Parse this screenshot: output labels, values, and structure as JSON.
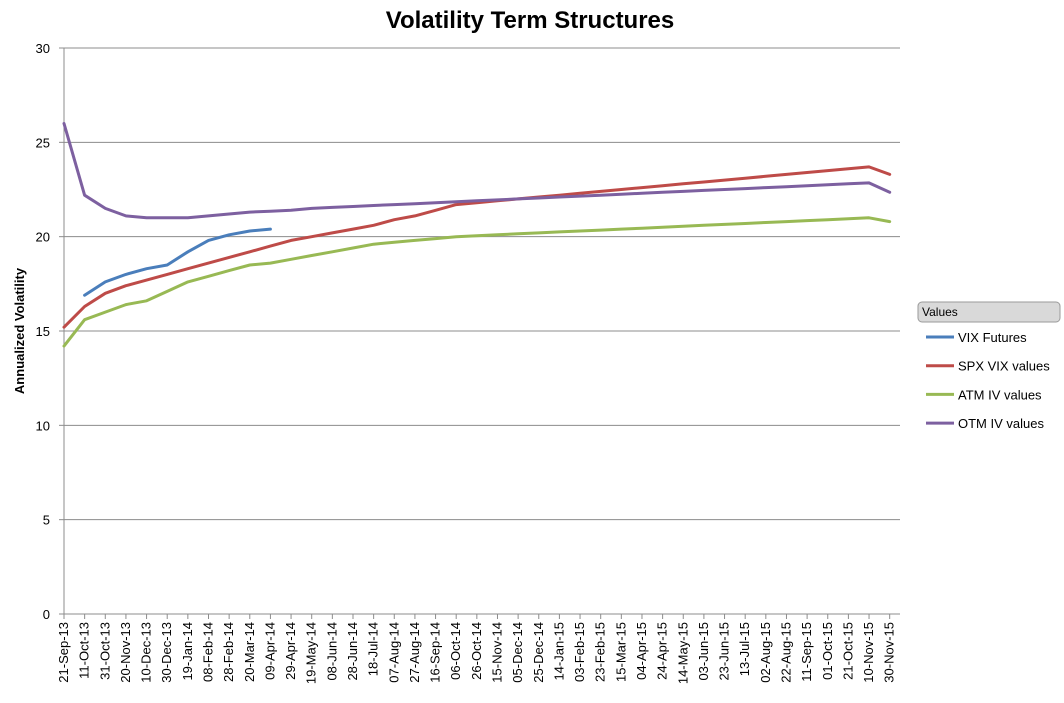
{
  "chart_data": {
    "type": "line",
    "title": "Volatility Term Structures",
    "xlabel": "",
    "ylabel": "Annualized Volatility",
    "ylim": [
      0,
      30
    ],
    "yticks": [
      "0",
      "5",
      "10",
      "15",
      "20",
      "25",
      "30"
    ],
    "grid": true,
    "legend_title": "Values",
    "legend_position": "right",
    "categories": [
      "21-Sep-13",
      "11-Oct-13",
      "31-Oct-13",
      "20-Nov-13",
      "10-Dec-13",
      "30-Dec-13",
      "19-Jan-14",
      "08-Feb-14",
      "28-Feb-14",
      "20-Mar-14",
      "09-Apr-14",
      "29-Apr-14",
      "19-May-14",
      "08-Jun-14",
      "28-Jun-14",
      "18-Jul-14",
      "07-Aug-14",
      "27-Aug-14",
      "16-Sep-14",
      "06-Oct-14",
      "26-Oct-14",
      "15-Nov-14",
      "05-Dec-14",
      "25-Dec-14",
      "14-Jan-15",
      "03-Feb-15",
      "23-Feb-15",
      "15-Mar-15",
      "04-Apr-15",
      "24-Apr-15",
      "14-May-15",
      "03-Jun-15",
      "23-Jun-15",
      "13-Jul-15",
      "02-Aug-15",
      "22-Aug-15",
      "11-Sep-15",
      "01-Oct-15",
      "21-Oct-15",
      "10-Nov-15",
      "30-Nov-15"
    ],
    "series": [
      {
        "name": "VIX Futures",
        "color": "#4a7ebb",
        "values": [
          null,
          16.9,
          17.6,
          18.0,
          18.3,
          18.5,
          19.2,
          19.8,
          20.1,
          20.3,
          20.4,
          null,
          null,
          null,
          null,
          null,
          null,
          null,
          null,
          null,
          null,
          null,
          null,
          null,
          null,
          null,
          null,
          null,
          null,
          null,
          null,
          null,
          null,
          null,
          null,
          null,
          null,
          null,
          null,
          null,
          null
        ]
      },
      {
        "name": "SPX VIX values",
        "color": "#be4b48",
        "values": [
          15.2,
          16.3,
          17.0,
          17.4,
          17.7,
          18.0,
          18.3,
          18.6,
          18.9,
          19.2,
          19.5,
          19.8,
          20.0,
          20.2,
          20.4,
          20.6,
          20.9,
          21.1,
          21.4,
          21.7,
          21.8,
          21.9,
          22.0,
          22.1,
          22.2,
          22.3,
          22.4,
          22.5,
          22.6,
          22.7,
          22.8,
          22.9,
          23.0,
          23.1,
          23.2,
          23.3,
          23.4,
          23.5,
          23.6,
          23.7,
          23.3
        ]
      },
      {
        "name": "ATM IV values",
        "color": "#98b954",
        "values": [
          14.2,
          15.6,
          16.0,
          16.4,
          16.6,
          17.1,
          17.6,
          17.9,
          18.2,
          18.5,
          18.6,
          18.8,
          19.0,
          19.2,
          19.4,
          19.6,
          19.7,
          19.8,
          19.9,
          20.0,
          20.05,
          20.1,
          20.15,
          20.2,
          20.25,
          20.3,
          20.35,
          20.4,
          20.45,
          20.5,
          20.55,
          20.6,
          20.65,
          20.7,
          20.75,
          20.8,
          20.85,
          20.9,
          20.95,
          21.0,
          20.8
        ]
      },
      {
        "name": "OTM IV values",
        "color": "#7d60a0",
        "values": [
          26.0,
          22.2,
          21.5,
          21.1,
          21.0,
          21.0,
          21.0,
          21.1,
          21.2,
          21.3,
          21.35,
          21.4,
          21.5,
          21.55,
          21.6,
          21.65,
          21.7,
          21.75,
          21.8,
          21.85,
          21.9,
          21.95,
          22.0,
          22.05,
          22.1,
          22.15,
          22.2,
          22.25,
          22.3,
          22.35,
          22.4,
          22.45,
          22.5,
          22.55,
          22.6,
          22.65,
          22.7,
          22.75,
          22.8,
          22.85,
          22.35
        ]
      }
    ]
  }
}
